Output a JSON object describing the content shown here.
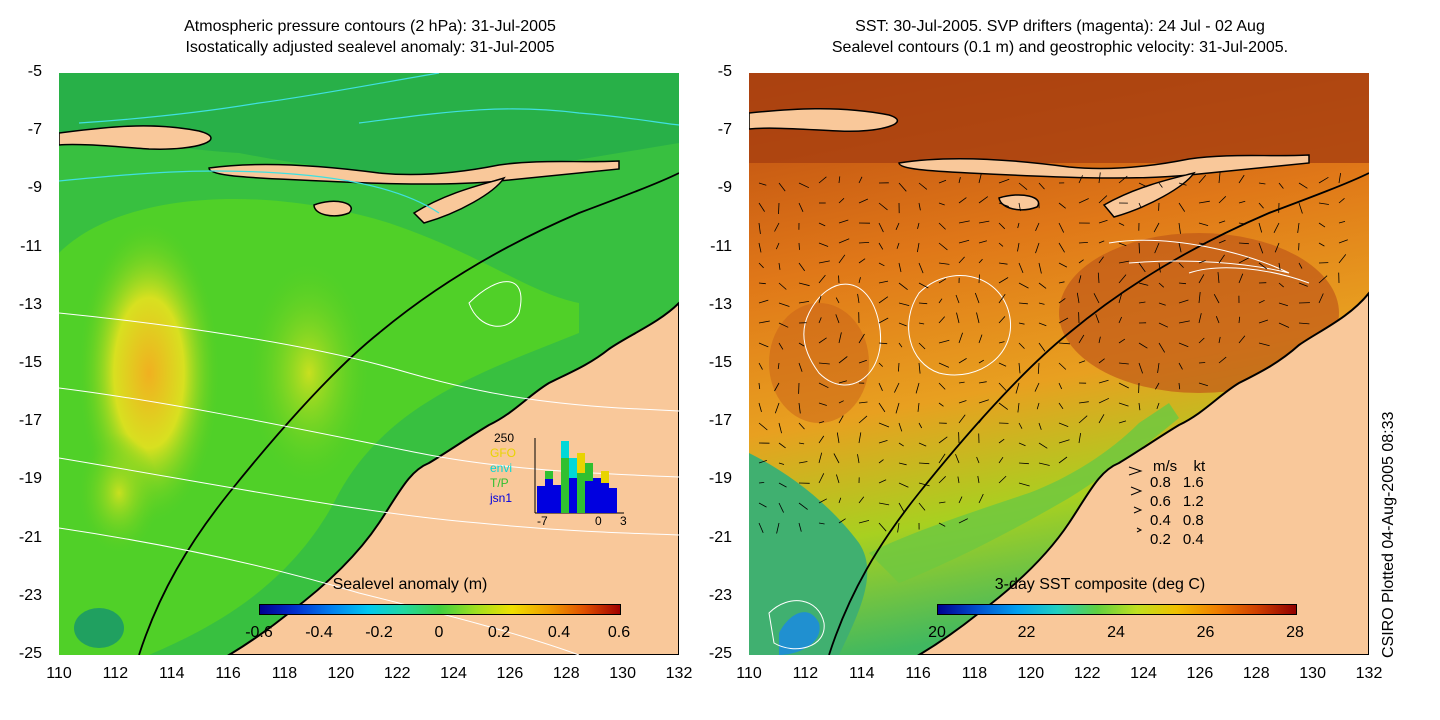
{
  "left": {
    "title_line1": "Atmospheric pressure contours (2 hPa): 31-Jul-2005",
    "title_line2": "Isostatically adjusted sealevel anomaly: 31-Jul-2005",
    "colorbar_title": "Sealevel anomaly (m)",
    "colorbar_ticks": [
      "-0.6",
      "-0.4",
      "-0.2",
      "0",
      "0.2",
      "0.4",
      "0.6"
    ],
    "inset": {
      "count_label": "250",
      "satellites": [
        "GFO",
        "envi",
        "T/P",
        "jsn1"
      ],
      "satellite_colors": [
        "#e8d400",
        "#00d8d8",
        "#30c030",
        "#0000e0"
      ],
      "x_ticks": [
        "-7",
        "0",
        "3"
      ]
    }
  },
  "right": {
    "title_line1": "SST: 30-Jul-2005. SVP drifters (magenta): 24 Jul - 02 Aug",
    "title_line2": "Sealevel contours (0.1 m) and geostrophic velocity: 31-Jul-2005.",
    "colorbar_title": "3-day SST composite (deg C)",
    "colorbar_ticks": [
      "20",
      "22",
      "24",
      "26",
      "28"
    ],
    "velocity_legend": {
      "header_ms": "m/s",
      "header_kt": "kt",
      "rows": [
        {
          "ms": "0.8",
          "kt": "1.6"
        },
        {
          "ms": "0.6",
          "kt": "1.2"
        },
        {
          "ms": "0.4",
          "kt": "0.8"
        },
        {
          "ms": "0.2",
          "kt": "0.4"
        }
      ]
    }
  },
  "axes": {
    "lat_ticks": [
      "-5",
      "-7",
      "-9",
      "-11",
      "-13",
      "-15",
      "-17",
      "-19",
      "-21",
      "-23",
      "-25"
    ],
    "lon_ticks": [
      "110",
      "112",
      "114",
      "116",
      "118",
      "120",
      "122",
      "124",
      "126",
      "128",
      "130",
      "132"
    ]
  },
  "credit": "CSIRO Plotted 04-Aug-2005 08:33",
  "colors": {
    "land": "#f9c89a",
    "coast": "#000000",
    "pressure_contour": "#40e0e0"
  }
}
